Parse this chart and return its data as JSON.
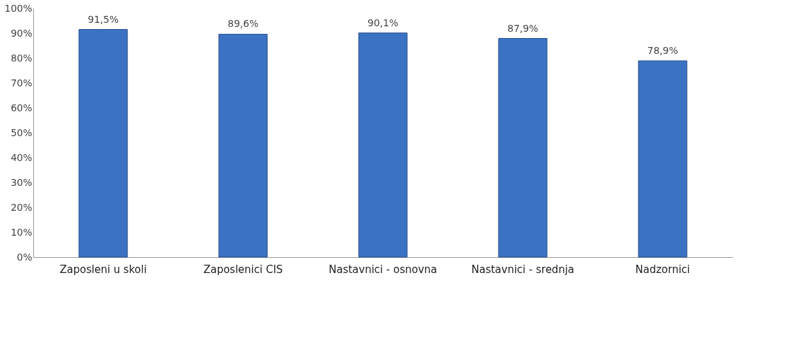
{
  "chart_data": {
    "type": "bar",
    "categories": [
      "Zaposleni u skoli",
      "Zaposlenici CIS",
      "Nastavnici - osnovna",
      "Nastavnici - srednja",
      "Nadzornici"
    ],
    "values": [
      91.5,
      89.6,
      90.1,
      87.9,
      78.9
    ],
    "value_labels": [
      "91,5%",
      "89,6%",
      "90,1%",
      "87,9%",
      "78,9%"
    ],
    "color": "#3b72c4",
    "ylim": [
      0,
      100
    ],
    "yticks": [
      {
        "value": 0,
        "label": "0%"
      },
      {
        "value": 10,
        "label": "10%"
      },
      {
        "value": 20,
        "label": "20%"
      },
      {
        "value": 30,
        "label": "30%"
      },
      {
        "value": 40,
        "label": "40%"
      },
      {
        "value": 50,
        "label": "50%"
      },
      {
        "value": 60,
        "label": "60%"
      },
      {
        "value": 70,
        "label": "70%"
      },
      {
        "value": 80,
        "label": "80%"
      },
      {
        "value": 90,
        "label": "90%"
      },
      {
        "value": 100,
        "label": "100%"
      }
    ],
    "grid": false
  }
}
